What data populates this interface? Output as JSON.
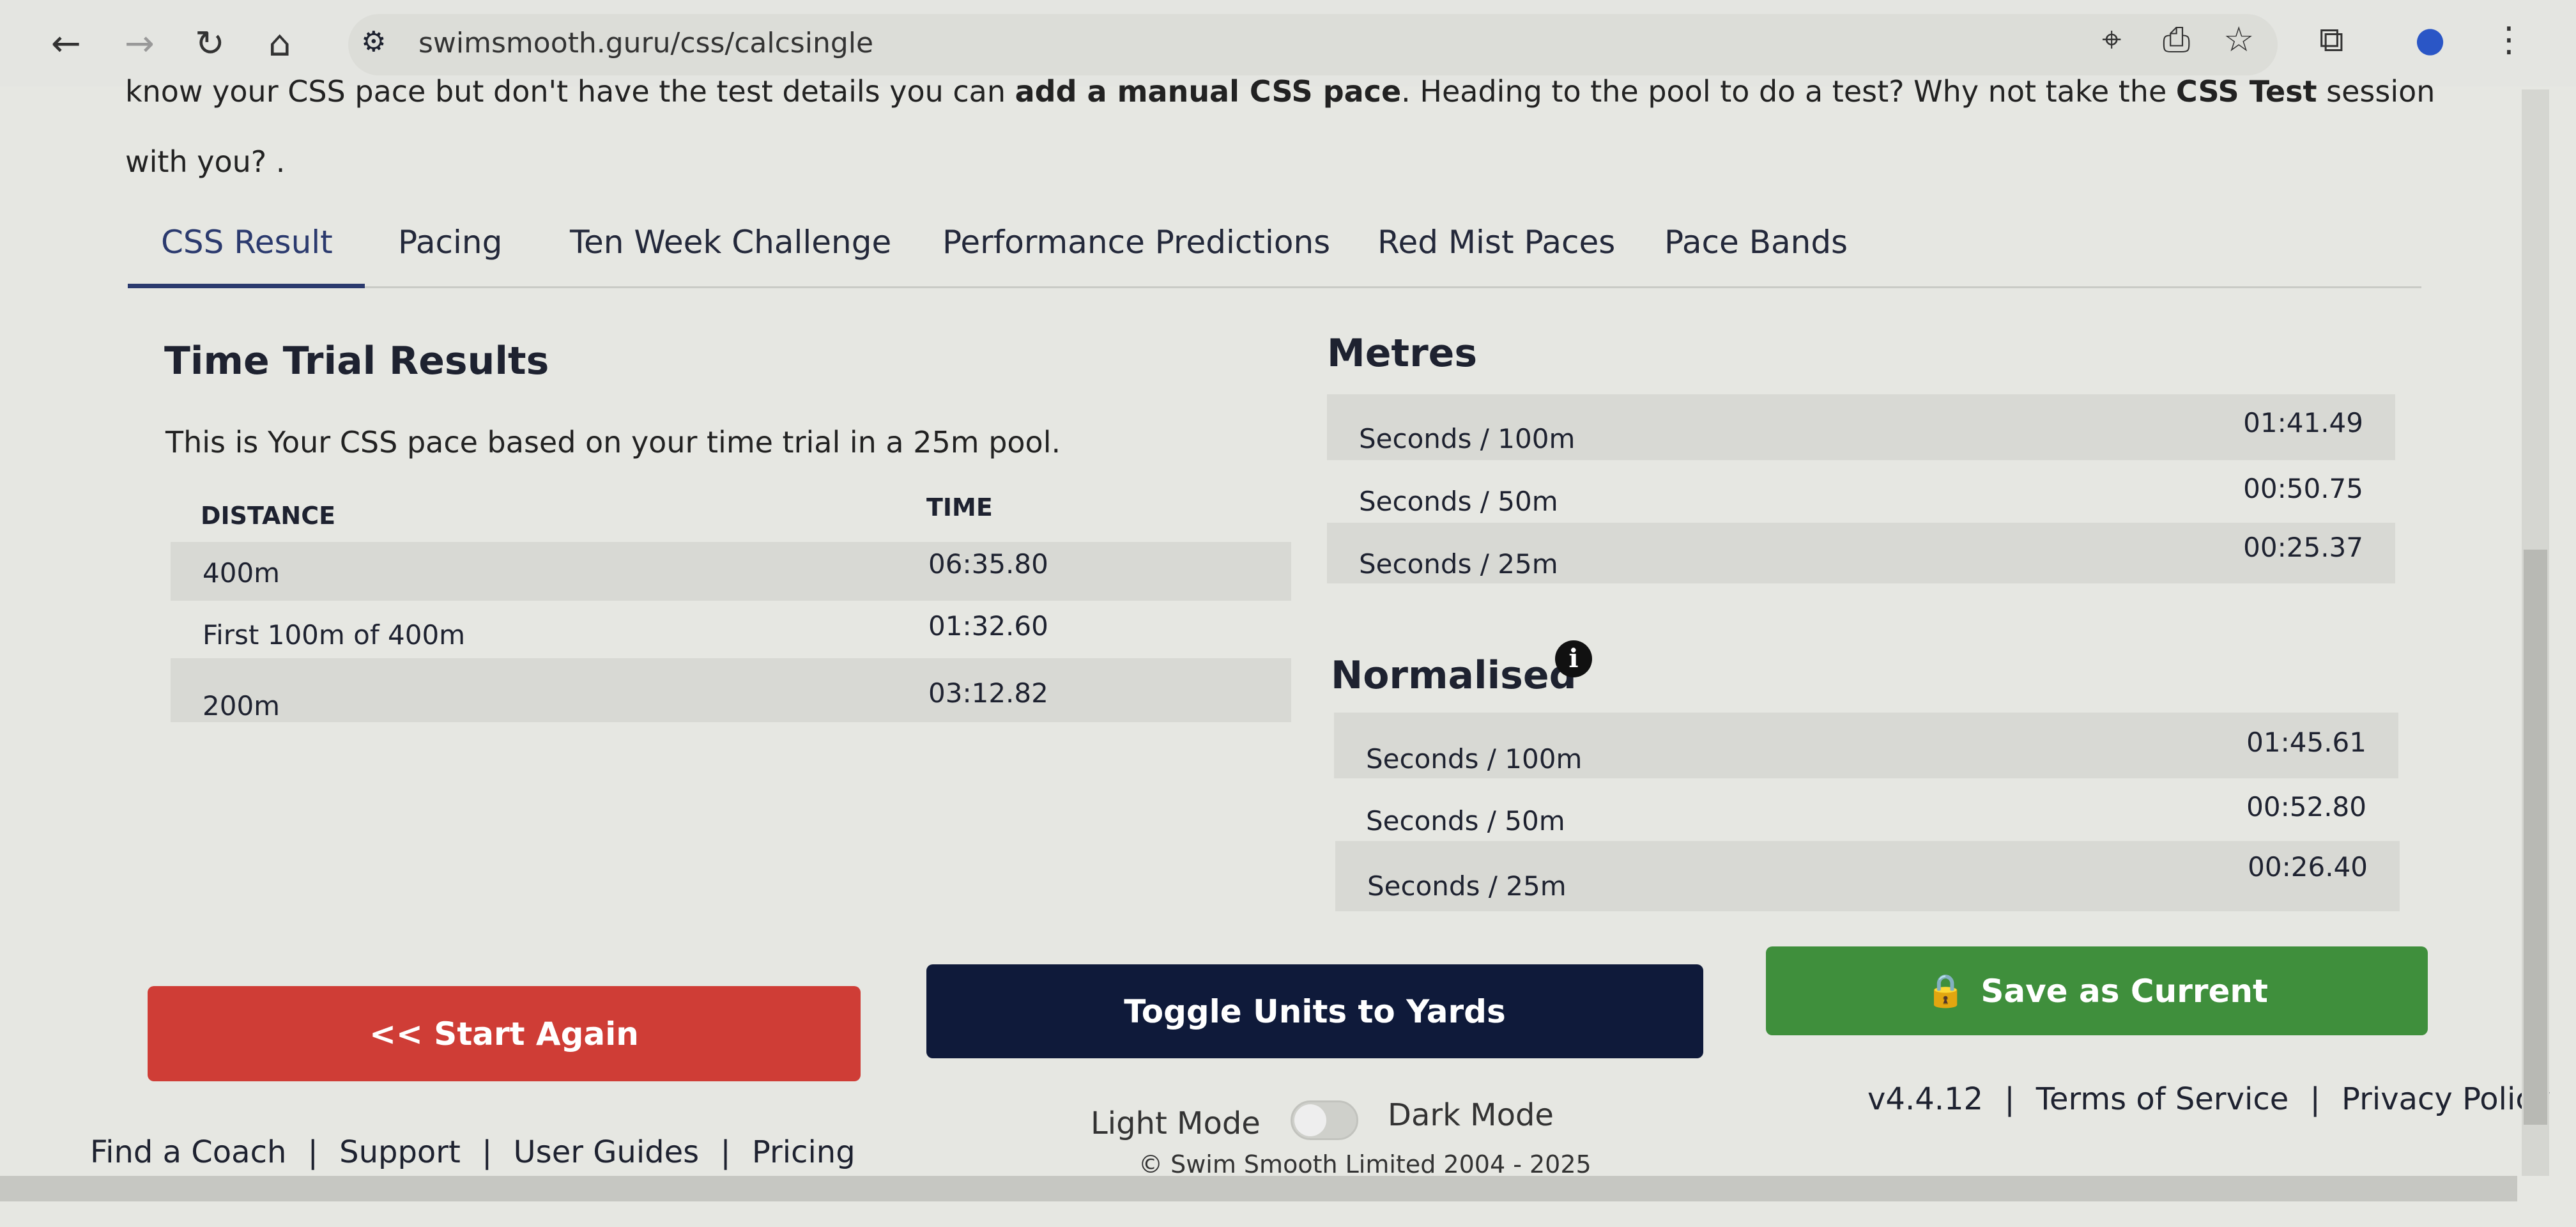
{
  "browser": {
    "url": "swimsmooth.guru/css/calcsingle"
  },
  "intro": {
    "line1_a": "know your CSS pace but don't have the test details you can ",
    "line1_link": "add a manual CSS pace",
    "line1_b": ". Heading to the pool to do a test? Why not take the ",
    "line1_link2": "CSS Test",
    "line1_c": " session",
    "line2": "with you? ."
  },
  "tabs": [
    {
      "label": "CSS Result",
      "active": true
    },
    {
      "label": "Pacing"
    },
    {
      "label": "Ten Week Challenge"
    },
    {
      "label": "Performance Predictions"
    },
    {
      "label": "Red Mist Paces"
    },
    {
      "label": "Pace Bands"
    }
  ],
  "results": {
    "title": "Time Trial Results",
    "description": "This is Your CSS pace based on your time trial in a 25m pool.",
    "headers": [
      "DISTANCE",
      "TIME"
    ],
    "rows": [
      {
        "distance": "400m",
        "time": "06:35.80"
      },
      {
        "distance": "First 100m of 400m",
        "time": "01:32.60"
      },
      {
        "distance": "200m",
        "time": "03:12.82"
      }
    ]
  },
  "metres": {
    "title": "Metres",
    "rows": [
      {
        "label": "Seconds / 100m",
        "value": "01:41.49"
      },
      {
        "label": "Seconds / 50m",
        "value": "00:50.75"
      },
      {
        "label": "Seconds / 25m",
        "value": "00:25.37"
      }
    ]
  },
  "normalised": {
    "title": "Normalised",
    "rows": [
      {
        "label": "Seconds / 100m",
        "value": "01:45.61"
      },
      {
        "label": "Seconds / 50m",
        "value": "00:52.80"
      },
      {
        "label": "Seconds / 25m",
        "value": "00:26.40"
      }
    ]
  },
  "buttons": {
    "start_again": "<< Start Again",
    "toggle_units": "Toggle Units to Yards",
    "save_current": "Save as Current"
  },
  "colors": {
    "start_again": "#cf3d36",
    "toggle_units": "#0f1a3a",
    "save_current": "#3f8f3c"
  },
  "footer": {
    "links": [
      "Find a Coach",
      "Support",
      "User Guides",
      "Pricing"
    ],
    "light_mode": "Light Mode",
    "dark_mode": "Dark Mode",
    "dark_mode_on": false,
    "copyright": "© Swim Smooth Limited 2004 - 2025",
    "version": "v4.4.12",
    "terms": "Terms of Service",
    "privacy": "Privacy Policy",
    "sep": "|"
  }
}
